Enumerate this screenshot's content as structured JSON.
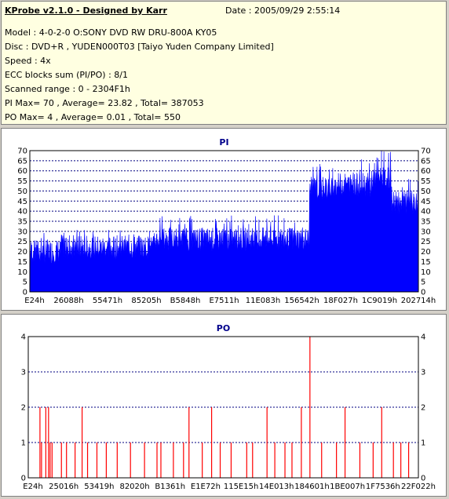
{
  "header": {
    "title": "KProbe v2.1.0 - Designed by Karr",
    "date": "Date : 2005/09/29 2:55:14",
    "lines": [
      "Model : 4-0-2-0 O:SONY    DVD RW DRU-800A  KY05",
      "Disc : DVD+R , YUDEN000T03 [Taiyo Yuden Company Limited]",
      "Speed : 4x",
      "ECC blocks sum (PI/PO) : 8/1",
      "Scanned range : 0 - 2304F1h",
      "PI Max= 70 , Average= 23.82 , Total= 387053",
      "PO Max= 4 , Average= 0.01 , Total= 550"
    ]
  },
  "chart_data": [
    {
      "type": "area",
      "title": "PI",
      "ylim": [
        0,
        70
      ],
      "yticks": [
        0,
        5,
        10,
        15,
        20,
        25,
        30,
        35,
        40,
        45,
        50,
        55,
        60,
        65,
        70
      ],
      "xticklabels": [
        "E24h",
        "26088h",
        "55471h",
        "85205h",
        "B5848h",
        "E7511h",
        "11E083h",
        "156542h",
        "18F027h",
        "1C9019h",
        "202714h"
      ],
      "grid": true,
      "color": "#0000ff",
      "segments": [
        {
          "x": [
            0.0,
            0.08
          ],
          "base": 24,
          "spike": 30
        },
        {
          "x": [
            0.08,
            0.32
          ],
          "base": 26,
          "spike": 31
        },
        {
          "x": [
            0.32,
            0.72
          ],
          "base": 30,
          "spike": 38
        },
        {
          "x": [
            0.72,
            0.78
          ],
          "base": 55,
          "spike": 64
        },
        {
          "x": [
            0.78,
            0.88
          ],
          "base": 57,
          "spike": 66
        },
        {
          "x": [
            0.88,
            0.93
          ],
          "base": 60,
          "spike": 70
        },
        {
          "x": [
            0.93,
            1.0
          ],
          "base": 48,
          "spike": 56
        }
      ],
      "max_point": {
        "x": 0.905,
        "y": 70
      }
    },
    {
      "type": "bar",
      "title": "PO",
      "ylim": [
        0,
        4
      ],
      "yticks": [
        0,
        1,
        2,
        3,
        4
      ],
      "xticklabels": [
        "E24h",
        "25016h",
        "53419h",
        "82020h",
        "B1361h",
        "E1E72h",
        "115E15h",
        "14E013h",
        "184601h",
        "1BE007h",
        "1F7536h",
        "22F022h"
      ],
      "grid": true,
      "color": "#ff0000",
      "bars": [
        {
          "x": 0.03,
          "y": 2
        },
        {
          "x": 0.034,
          "y": 1
        },
        {
          "x": 0.045,
          "y": 2
        },
        {
          "x": 0.052,
          "y": 2
        },
        {
          "x": 0.056,
          "y": 1
        },
        {
          "x": 0.061,
          "y": 1
        },
        {
          "x": 0.085,
          "y": 1
        },
        {
          "x": 0.098,
          "y": 1
        },
        {
          "x": 0.12,
          "y": 1
        },
        {
          "x": 0.138,
          "y": 2
        },
        {
          "x": 0.152,
          "y": 1
        },
        {
          "x": 0.176,
          "y": 1
        },
        {
          "x": 0.2,
          "y": 1
        },
        {
          "x": 0.228,
          "y": 1
        },
        {
          "x": 0.262,
          "y": 1
        },
        {
          "x": 0.298,
          "y": 1
        },
        {
          "x": 0.33,
          "y": 1
        },
        {
          "x": 0.34,
          "y": 1
        },
        {
          "x": 0.372,
          "y": 1
        },
        {
          "x": 0.398,
          "y": 1
        },
        {
          "x": 0.412,
          "y": 2
        },
        {
          "x": 0.446,
          "y": 1
        },
        {
          "x": 0.47,
          "y": 2
        },
        {
          "x": 0.492,
          "y": 1
        },
        {
          "x": 0.52,
          "y": 1
        },
        {
          "x": 0.56,
          "y": 1
        },
        {
          "x": 0.575,
          "y": 1
        },
        {
          "x": 0.612,
          "y": 2
        },
        {
          "x": 0.632,
          "y": 1
        },
        {
          "x": 0.658,
          "y": 1
        },
        {
          "x": 0.676,
          "y": 1
        },
        {
          "x": 0.7,
          "y": 2
        },
        {
          "x": 0.722,
          "y": 4
        },
        {
          "x": 0.752,
          "y": 1
        },
        {
          "x": 0.79,
          "y": 1
        },
        {
          "x": 0.812,
          "y": 2
        },
        {
          "x": 0.85,
          "y": 1
        },
        {
          "x": 0.884,
          "y": 1
        },
        {
          "x": 0.906,
          "y": 2
        },
        {
          "x": 0.936,
          "y": 1
        },
        {
          "x": 0.955,
          "y": 1
        },
        {
          "x": 0.975,
          "y": 1
        }
      ]
    }
  ]
}
